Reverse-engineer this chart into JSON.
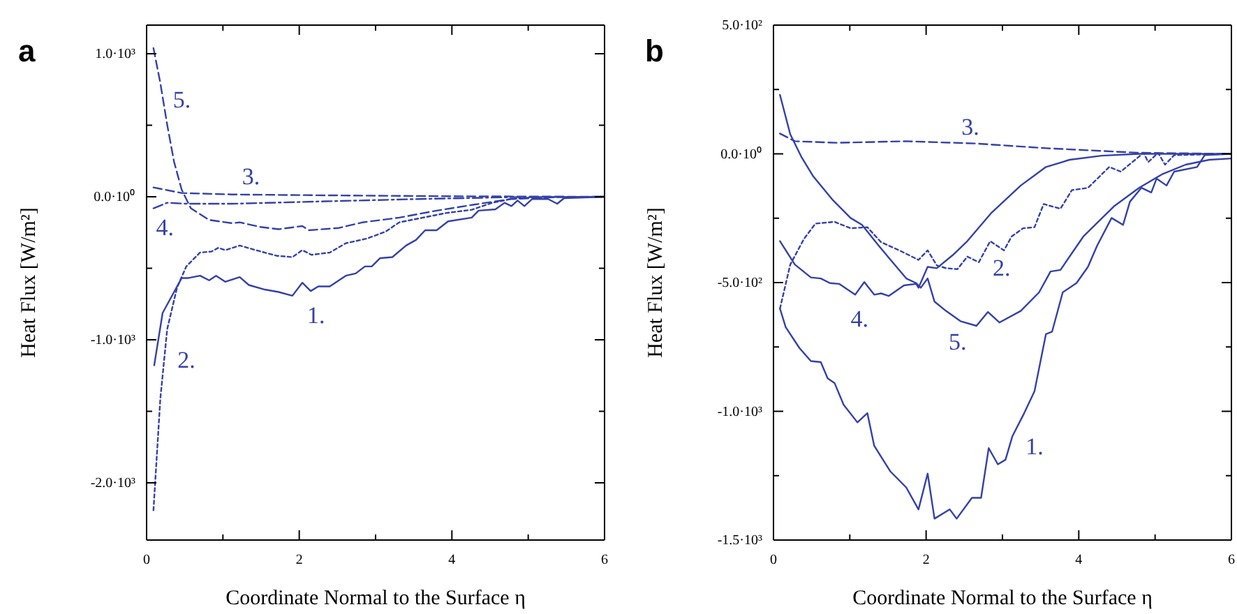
{
  "chart_data": [
    {
      "type": "line",
      "title": "a",
      "xlabel": "Coordinate Normal to the Surface η",
      "ylabel": "Heat Flux [W/m²]",
      "xlim": [
        0,
        6
      ],
      "xticks": [
        0,
        {
          "value": 1,
          "label": null
        },
        2,
        {
          "value": 3,
          "label": null
        },
        4,
        {
          "value": 5,
          "label": null
        },
        6
      ],
      "ylim": [
        -2400,
        1200
      ],
      "yticks": [
        {
          "value": 1000,
          "label": "1.0·10³"
        },
        {
          "value": 500,
          "label": null
        },
        {
          "value": 0,
          "label": "0.0·10⁰"
        },
        {
          "value": -500,
          "label": null
        },
        {
          "value": -1000,
          "label": "-1.0·10³"
        },
        {
          "value": -1500,
          "label": null
        },
        {
          "value": -2000,
          "label": "-2.0·10³"
        }
      ],
      "series": [
        {
          "name": "1.",
          "color": "#3441a8",
          "line_style": "solid",
          "x": [
            0.1,
            0.21,
            0.46,
            0.55,
            0.7,
            0.82,
            0.91,
            1.03,
            1.22,
            1.34,
            1.55,
            1.73,
            1.91,
            2.04,
            2.15,
            2.25,
            2.4,
            2.61,
            2.74,
            2.86,
            2.95,
            3.06,
            3.22,
            3.4,
            3.53,
            3.65,
            3.8,
            3.95,
            4.26,
            4.35,
            4.57,
            4.69,
            4.78,
            4.86,
            4.95,
            5.05,
            5.26,
            5.38,
            5.47,
            6
          ],
          "values": [
            -1178,
            -812,
            -568,
            -568,
            -552,
            -584,
            -552,
            -594,
            -562,
            -617,
            -649,
            -666,
            -692,
            -601,
            -659,
            -627,
            -627,
            -552,
            -536,
            -487,
            -487,
            -429,
            -422,
            -341,
            -302,
            -234,
            -234,
            -172,
            -146,
            -97,
            -88,
            -42,
            -65,
            -26,
            -65,
            -16,
            -16,
            -49,
            -10,
            0
          ]
        },
        {
          "name": "2.",
          "color": "#3441a8",
          "line_style": "dotted",
          "x": [
            0.09,
            0.18,
            0.27,
            0.4,
            0.52,
            0.7,
            0.85,
            0.94,
            1.03,
            1.22,
            1.43,
            1.7,
            1.91,
            2.04,
            2.16,
            2.4,
            2.61,
            2.89,
            3.13,
            3.31,
            3.62,
            3.92,
            4.26,
            4.53,
            4.77,
            5.08,
            6
          ],
          "values": [
            -2192,
            -1412,
            -925,
            -633,
            -487,
            -390,
            -383,
            -357,
            -373,
            -341,
            -373,
            -412,
            -422,
            -373,
            -406,
            -390,
            -325,
            -292,
            -244,
            -179,
            -146,
            -114,
            -91,
            -42,
            -16,
            -3,
            0
          ]
        },
        {
          "name": "3.",
          "color": "#3441a8",
          "line_style": "dashed",
          "x": [
            0.09,
            0.46,
            1.12,
            2.34,
            4.16,
            6
          ],
          "values": [
            65,
            26,
            16,
            10,
            3,
            0
          ]
        },
        {
          "name": "4.",
          "color": "#3441a8",
          "line_style": "dashdot",
          "x": [
            0.09,
            0.27,
            0.52,
            1.12,
            2.34,
            3.56,
            4.77,
            6
          ],
          "values": [
            -81,
            -42,
            -49,
            -49,
            -32,
            -16,
            -3,
            0
          ]
        },
        {
          "name": "5.",
          "color": "#3441a8",
          "line_style": "dashed",
          "x": [
            0.09,
            0.18,
            0.27,
            0.36,
            0.46,
            0.58,
            0.82,
            1.12,
            1.22,
            1.49,
            1.73,
            2.04,
            2.13,
            2.52,
            2.83,
            3.31,
            3.8,
            4.29,
            4.77,
            5.38,
            6
          ],
          "values": [
            1039,
            795,
            503,
            244,
            49,
            -81,
            -162,
            -185,
            -179,
            -211,
            -227,
            -205,
            -234,
            -218,
            -179,
            -146,
            -97,
            -55,
            -16,
            -3,
            0
          ]
        }
      ]
    },
    {
      "type": "line",
      "title": "b",
      "xlabel": "Coordinate Normal to the Surface η",
      "ylabel": "Heat Flux [W/m²]",
      "xlim": [
        0,
        6
      ],
      "xticks": [
        0,
        {
          "value": 1,
          "label": null
        },
        2,
        {
          "value": 3,
          "label": null
        },
        4,
        {
          "value": 5,
          "label": null
        },
        6
      ],
      "ylim": [
        -1500,
        500
      ],
      "yticks": [
        {
          "value": 500,
          "label": "5.0·10²"
        },
        {
          "value": 250,
          "label": null
        },
        {
          "value": 0,
          "label": "0.0·10⁰"
        },
        {
          "value": -250,
          "label": null
        },
        {
          "value": -500,
          "label": "-5.0·10²"
        },
        {
          "value": -750,
          "label": null
        },
        {
          "value": -1000,
          "label": "-1.0·10³"
        },
        {
          "value": -1250,
          "label": null
        },
        {
          "value": -1500,
          "label": "-1.5·10³"
        }
      ],
      "series": [
        {
          "name": "1.",
          "color": "#3441a8",
          "line_style": "solid",
          "x": [
            0.085,
            0.16,
            0.34,
            0.49,
            0.62,
            0.71,
            0.8,
            0.92,
            1.1,
            1.23,
            1.32,
            1.53,
            1.74,
            1.9,
            2.02,
            2.11,
            2.31,
            2.4,
            2.6,
            2.72,
            2.82,
            2.94,
            3.04,
            3.13,
            3.27,
            3.42,
            3.57,
            3.65,
            3.79,
            3.97,
            4.12,
            4.24,
            4.43,
            4.58,
            4.67,
            4.82,
            4.95,
            5.02,
            5.15,
            5.25,
            5.55,
            5.65,
            6
          ],
          "values": [
            -601,
            -673,
            -754,
            -805,
            -809,
            -872,
            -890,
            -975,
            -1043,
            -1007,
            -1134,
            -1233,
            -1296,
            -1381,
            -1242,
            -1417,
            -1381,
            -1417,
            -1336,
            -1336,
            -1143,
            -1206,
            -1188,
            -1097,
            -1016,
            -922,
            -700,
            -691,
            -538,
            -502,
            -439,
            -357,
            -249,
            -276,
            -186,
            -132,
            -150,
            -96,
            -123,
            -69,
            -51,
            -5,
            0
          ]
        },
        {
          "name": "2.",
          "color": "#3441a8",
          "line_style": "dotted",
          "x": [
            0.085,
            0.22,
            0.4,
            0.55,
            0.8,
            1.01,
            1.23,
            1.41,
            1.65,
            1.9,
            2.02,
            2.14,
            2.26,
            2.41,
            2.54,
            2.69,
            2.84,
            3.02,
            3.12,
            3.27,
            3.42,
            3.54,
            3.76,
            3.91,
            4.12,
            4.4,
            4.55,
            4.85,
            4.91,
            5.04,
            5.13,
            5.25,
            6
          ],
          "values": [
            -601,
            -430,
            -330,
            -271,
            -264,
            -289,
            -285,
            -343,
            -375,
            -412,
            -375,
            -433,
            -444,
            -448,
            -399,
            -421,
            -339,
            -375,
            -321,
            -289,
            -285,
            -195,
            -213,
            -141,
            -132,
            -51,
            -69,
            4,
            -32,
            4,
            -42,
            -5,
            0
          ]
        },
        {
          "name": "3.",
          "color": "#3441a8",
          "line_style": "dashed",
          "x": [
            0.085,
            0.28,
            0.83,
            1.74,
            2.66,
            3.57,
            4.79,
            6
          ],
          "values": [
            79,
            49,
            43,
            49,
            40,
            22,
            4,
            0
          ]
        },
        {
          "name": "4.",
          "color": "#3441a8",
          "line_style": "solid",
          "x": [
            0.085,
            0.28,
            0.49,
            0.62,
            0.74,
            0.86,
            1.07,
            1.19,
            1.32,
            1.41,
            1.51,
            1.71,
            1.87,
            1.9,
            2.02,
            2.14,
            2.35,
            2.54,
            2.85,
            3.24,
            3.57,
            3.88,
            4.3,
            4.79,
            6
          ],
          "values": [
            -339,
            -430,
            -480,
            -484,
            -502,
            -505,
            -547,
            -498,
            -547,
            -542,
            -552,
            -511,
            -505,
            -520,
            -439,
            -444,
            -393,
            -339,
            -231,
            -123,
            -51,
            -23,
            -7,
            0,
            0
          ]
        },
        {
          "name": "5.",
          "color": "#3441a8",
          "line_style": "solid",
          "x": [
            0.085,
            0.22,
            0.37,
            0.52,
            0.77,
            1.01,
            1.16,
            1.38,
            1.56,
            1.74,
            1.87,
            1.93,
            2.02,
            2.11,
            2.26,
            2.45,
            2.66,
            2.81,
            2.96,
            3.24,
            3.48,
            3.63,
            3.76,
            4.06,
            4.46,
            4.79,
            5.1,
            5.4,
            5.71,
            6
          ],
          "values": [
            229,
            76,
            -14,
            -87,
            -177,
            -249,
            -276,
            -357,
            -421,
            -484,
            -502,
            -520,
            -484,
            -574,
            -610,
            -650,
            -668,
            -614,
            -655,
            -610,
            -538,
            -457,
            -451,
            -321,
            -204,
            -132,
            -78,
            -42,
            -23,
            -18
          ]
        }
      ]
    }
  ]
}
